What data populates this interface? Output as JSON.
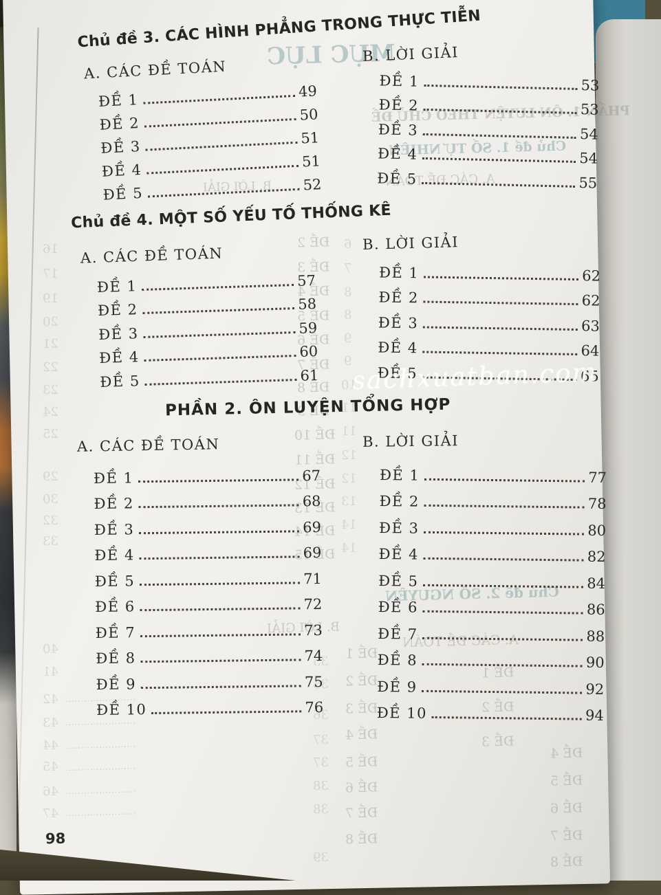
{
  "document": {
    "page_number": "98",
    "watermark": "sachxuatban.com",
    "sections": [
      {
        "title": "Chủ đề 3. CÁC HÌNH PHẲNG TRONG THỰC TIỄN",
        "left_heading": "A. CÁC ĐỀ TOÁN",
        "right_heading": "B. LỜI GIẢI",
        "problems": [
          {
            "label": "ĐỀ 1",
            "page": "49"
          },
          {
            "label": "ĐỀ 2",
            "page": "50"
          },
          {
            "label": "ĐỀ 3",
            "page": "51"
          },
          {
            "label": "ĐỀ 4",
            "page": "51"
          },
          {
            "label": "ĐỀ 5",
            "page": "52"
          }
        ],
        "solutions": [
          {
            "label": "ĐỀ 1",
            "page": "53"
          },
          {
            "label": "ĐỀ 2",
            "page": "53"
          },
          {
            "label": "ĐỀ 3",
            "page": "54"
          },
          {
            "label": "ĐỀ 4",
            "page": "54"
          },
          {
            "label": "ĐỀ 5",
            "page": "55"
          }
        ]
      },
      {
        "title": "Chủ đề 4. MỘT SỐ YẾU TỐ THỐNG KÊ",
        "left_heading": "A. CÁC ĐỀ TOÁN",
        "right_heading": "B. LỜI GIẢI",
        "problems": [
          {
            "label": "ĐỀ 1",
            "page": "57"
          },
          {
            "label": "ĐỀ 2",
            "page": "58"
          },
          {
            "label": "ĐỀ 3",
            "page": "59"
          },
          {
            "label": "ĐỀ 4",
            "page": "60"
          },
          {
            "label": "ĐỀ 5",
            "page": "61"
          }
        ],
        "solutions": [
          {
            "label": "ĐỀ 1",
            "page": "62"
          },
          {
            "label": "ĐỀ 2",
            "page": "62"
          },
          {
            "label": "ĐỀ 3",
            "page": "63"
          },
          {
            "label": "ĐỀ 4",
            "page": "64"
          },
          {
            "label": "ĐỀ 5",
            "page": "65"
          }
        ]
      },
      {
        "title": "PHẦN 2. ÔN LUYỆN TỔNG HỢP",
        "left_heading": "A. CÁC ĐỀ TOÁN",
        "right_heading": "B. LỜI GIẢI",
        "problems": [
          {
            "label": "ĐỀ 1",
            "page": "67"
          },
          {
            "label": "ĐỀ 2",
            "page": "68"
          },
          {
            "label": "ĐỀ 3",
            "page": "69"
          },
          {
            "label": "ĐỀ 4",
            "page": "69"
          },
          {
            "label": "ĐỀ 5",
            "page": "71"
          },
          {
            "label": "ĐỀ 6",
            "page": "72"
          },
          {
            "label": "ĐỀ 7",
            "page": "73"
          },
          {
            "label": "ĐỀ 8",
            "page": "74"
          },
          {
            "label": "ĐỀ 9",
            "page": "75"
          },
          {
            "label": "ĐỀ 10",
            "page": "76"
          }
        ],
        "solutions": [
          {
            "label": "ĐỀ 1",
            "page": "77"
          },
          {
            "label": "ĐỀ 2",
            "page": "78"
          },
          {
            "label": "ĐỀ 3",
            "page": "80"
          },
          {
            "label": "ĐỀ 4",
            "page": "82"
          },
          {
            "label": "ĐỀ 5",
            "page": "84"
          },
          {
            "label": "ĐỀ 6",
            "page": "86"
          },
          {
            "label": "ĐỀ 7",
            "page": "88"
          },
          {
            "label": "ĐỀ 8",
            "page": "90"
          },
          {
            "label": "ĐỀ 9",
            "page": "92"
          },
          {
            "label": "ĐỀ 10",
            "page": "94"
          }
        ]
      }
    ],
    "bleedthrough": [
      [
        "MỤC LỤC",
        388,
        60,
        34,
        "teal",
        1
      ],
      [
        "PHẦN 1. ÔN LUYỆN THEO CHỦ ĐỀ",
        540,
        155,
        19,
        "grey",
        1
      ],
      [
        "Chủ đề 1. SỐ TỰ NHIÊN",
        565,
        205,
        19,
        "teal",
        1
      ],
      [
        "A. CÁC ĐỀ TOÁN",
        560,
        252,
        18,
        "grey",
        0
      ],
      [
        "B. LỜI GIẢI",
        295,
        262,
        17,
        "grey",
        0
      ],
      [
        "ĐỀ 2",
        432,
        342,
        19,
        "grey",
        0
      ],
      [
        "ĐỀ 3",
        432,
        378,
        19,
        "grey",
        0
      ],
      [
        "ĐỀ 4",
        432,
        413,
        19,
        "grey",
        0
      ],
      [
        "ĐỀ 5",
        432,
        449,
        19,
        "grey",
        0
      ],
      [
        "ĐỀ 6",
        432,
        484,
        19,
        "grey",
        0
      ],
      [
        "ĐỀ 7",
        432,
        520,
        19,
        "grey",
        0
      ],
      [
        "ĐỀ 8",
        432,
        553,
        19,
        "grey",
        0
      ],
      [
        "ĐỀ 9",
        432,
        587,
        19,
        "grey",
        0
      ],
      [
        "ĐỀ 10",
        428,
        622,
        19,
        "grey",
        0
      ],
      [
        "ĐỀ 11",
        428,
        658,
        19,
        "grey",
        0
      ],
      [
        "ĐỀ 12",
        428,
        694,
        19,
        "grey",
        0
      ],
      [
        "ĐỀ 13",
        428,
        728,
        19,
        "grey",
        0
      ],
      [
        "ĐỀ 14",
        428,
        762,
        19,
        "grey",
        0
      ],
      [
        "ĐỀ 15",
        428,
        796,
        19,
        "grey",
        0
      ],
      [
        "6",
        500,
        345,
        18,
        "faint",
        0
      ],
      [
        "7",
        500,
        380,
        18,
        "faint",
        0
      ],
      [
        "8",
        500,
        415,
        18,
        "faint",
        0
      ],
      [
        "8",
        500,
        448,
        18,
        "faint",
        0
      ],
      [
        "9",
        500,
        482,
        18,
        "faint",
        0
      ],
      [
        "9",
        500,
        515,
        18,
        "faint",
        0
      ],
      [
        "10",
        496,
        550,
        18,
        "faint",
        0
      ],
      [
        "11",
        496,
        583,
        18,
        "faint",
        0
      ],
      [
        "11",
        496,
        617,
        18,
        "faint",
        0
      ],
      [
        "12",
        496,
        652,
        18,
        "faint",
        0
      ],
      [
        "12",
        496,
        686,
        18,
        "faint",
        0
      ],
      [
        "13",
        496,
        719,
        18,
        "faint",
        0
      ],
      [
        "14",
        496,
        753,
        18,
        "faint",
        0
      ],
      [
        "14",
        496,
        787,
        18,
        "faint",
        0
      ],
      [
        "16",
        62,
        352,
        18,
        "faint",
        0
      ],
      [
        "17",
        62,
        388,
        18,
        "faint",
        0
      ],
      [
        "19",
        62,
        424,
        18,
        "faint",
        0
      ],
      [
        "20",
        62,
        458,
        18,
        "faint",
        0
      ],
      [
        "21",
        62,
        490,
        18,
        "faint",
        0
      ],
      [
        "22",
        62,
        524,
        18,
        "faint",
        0
      ],
      [
        "23",
        62,
        557,
        18,
        "faint",
        0
      ],
      [
        "24",
        62,
        589,
        18,
        "faint",
        0
      ],
      [
        "25",
        62,
        621,
        18,
        "faint",
        0
      ],
      [
        "29",
        62,
        683,
        18,
        "faint",
        0
      ],
      [
        "30",
        62,
        716,
        18,
        "faint",
        0
      ],
      [
        "32",
        62,
        747,
        18,
        "faint",
        0
      ],
      [
        "33",
        62,
        777,
        18,
        "faint",
        0
      ],
      [
        "40",
        62,
        934,
        18,
        "faint",
        0
      ],
      [
        "41",
        62,
        967,
        18,
        "faint",
        0
      ],
      [
        "42",
        62,
        1007,
        18,
        "faint",
        0
      ],
      [
        "43",
        62,
        1041,
        18,
        "faint",
        0
      ],
      [
        "44",
        62,
        1074,
        18,
        "faint",
        0
      ],
      [
        "45",
        62,
        1105,
        18,
        "faint",
        0
      ],
      [
        "46",
        62,
        1141,
        18,
        "faint",
        0
      ],
      [
        "47",
        62,
        1173,
        18,
        "faint",
        0
      ],
      [
        "35",
        455,
        952,
        18,
        "faint",
        0
      ],
      [
        "35",
        455,
        985,
        18,
        "faint",
        0
      ],
      [
        "36",
        455,
        1030,
        18,
        "faint",
        0
      ],
      [
        "37",
        455,
        1066,
        18,
        "faint",
        0
      ],
      [
        "37",
        455,
        1099,
        18,
        "faint",
        0
      ],
      [
        "38",
        455,
        1133,
        18,
        "faint",
        0
      ],
      [
        "38",
        455,
        1167,
        18,
        "faint",
        0
      ],
      [
        "39",
        455,
        1237,
        18,
        "faint",
        0
      ],
      [
        "B. LỜI GIẢI",
        388,
        903,
        18,
        "grey",
        0
      ],
      [
        "ĐỀ 1",
        502,
        940,
        19,
        "grey",
        0
      ],
      [
        "ĐỀ 2",
        502,
        980,
        19,
        "grey",
        0
      ],
      [
        "ĐỀ 3",
        502,
        1020,
        19,
        "grey",
        0
      ],
      [
        "ĐỀ 4",
        502,
        1058,
        19,
        "grey",
        0
      ],
      [
        "ĐỀ 5",
        502,
        1098,
        19,
        "grey",
        0
      ],
      [
        "ĐỀ 6",
        502,
        1135,
        19,
        "grey",
        0
      ],
      [
        "ĐỀ 7",
        502,
        1172,
        19,
        "grey",
        0
      ],
      [
        "ĐỀ 8",
        502,
        1210,
        19,
        "grey",
        0
      ],
      [
        "Chủ đề 2. SỐ NGUYÊN",
        560,
        852,
        20,
        "teal",
        1
      ],
      [
        "A. CÁC ĐỀ TOÁN",
        585,
        922,
        19,
        "grey",
        0
      ],
      [
        "ĐỀ 1",
        700,
        968,
        19,
        "grey",
        0
      ],
      [
        "ĐỀ 2",
        700,
        1018,
        19,
        "grey",
        0
      ],
      [
        "ĐỀ 3",
        700,
        1068,
        19,
        "grey",
        0
      ],
      [
        "ĐỀ 4",
        800,
        1085,
        19,
        "grey",
        0
      ],
      [
        "ĐỀ 5",
        800,
        1125,
        19,
        "grey",
        0
      ],
      [
        "ĐỀ 6",
        800,
        1165,
        19,
        "grey",
        0
      ],
      [
        "ĐỀ 7",
        800,
        1205,
        19,
        "grey",
        0
      ],
      [
        "ĐỀ 8",
        800,
        1243,
        19,
        "grey",
        0
      ],
      [
        "·······················",
        95,
        1012,
        14,
        "faint",
        0
      ],
      [
        "·······················",
        95,
        1046,
        14,
        "faint",
        0
      ],
      [
        "·······················",
        95,
        1080,
        14,
        "faint",
        0
      ],
      [
        "·······················",
        95,
        1112,
        14,
        "faint",
        0
      ],
      [
        "·······················",
        95,
        1146,
        14,
        "faint",
        0
      ],
      [
        "·······················",
        95,
        1178,
        14,
        "faint",
        0
      ]
    ]
  },
  "colors": {
    "ink": "#2b2a27",
    "page_paper": "#f1f0ec",
    "teal_cover_corner": "#3d7d95",
    "table_surface": "#4c4734",
    "watermark_white": "rgba(255,255,255,0.85)",
    "ghost_teal": "rgba(102,148,153,0.42)",
    "ghost_grey": "rgba(128,130,124,0.34)"
  }
}
